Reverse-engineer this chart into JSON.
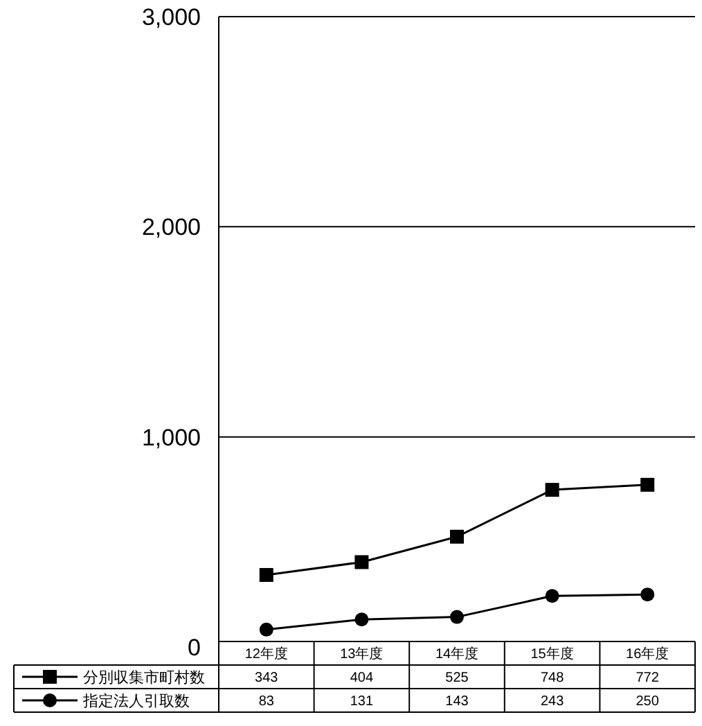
{
  "chart_data": {
    "type": "line",
    "categories": [
      "12年度",
      "13年度",
      "14年度",
      "15年度",
      "16年度"
    ],
    "series": [
      {
        "name": "分別収集市町村数",
        "color": "#000000",
        "marker": "square",
        "values": [
          343,
          404,
          525,
          748,
          772
        ]
      },
      {
        "name": "指定法人引取数",
        "color": "#000000",
        "marker": "circle",
        "values": [
          83,
          131,
          143,
          243,
          250
        ]
      }
    ],
    "ylim": [
      0,
      3000
    ],
    "yticks": [
      {
        "value": 0,
        "label": "0"
      },
      {
        "value": 1000,
        "label": "1,000"
      },
      {
        "value": 2000,
        "label": "2,000"
      },
      {
        "value": 3000,
        "label": "3,000"
      }
    ],
    "grid": "y",
    "data_labels": true,
    "legend": "bottom",
    "line_style": "solid"
  }
}
